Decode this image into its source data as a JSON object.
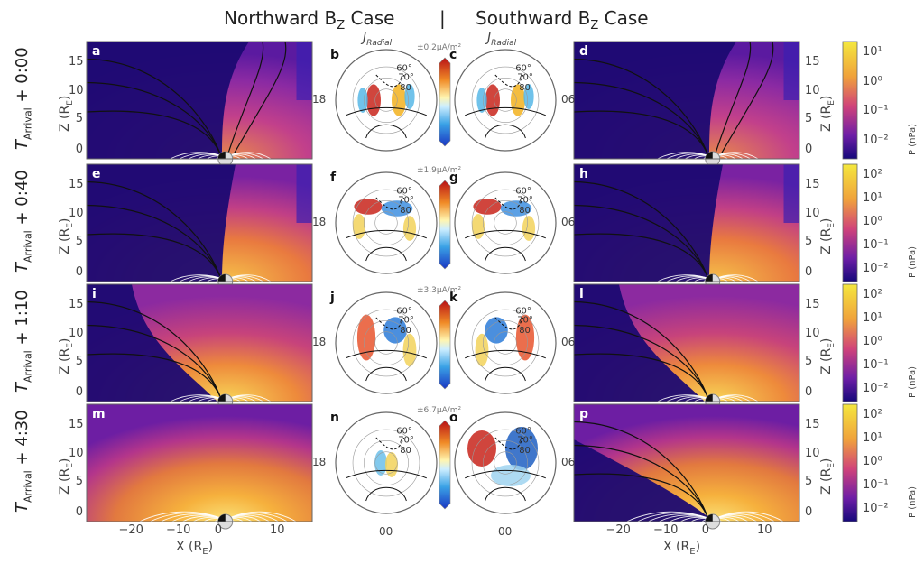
{
  "title_left": "Northward B",
  "title_left_sub": "Z",
  "title_left_tail": " Case",
  "separator": "|",
  "title_right": "Southward B",
  "title_right_sub": "Z",
  "title_right_tail": " Case",
  "jradial_label": "J",
  "jradial_sub": "Radial",
  "rows": [
    {
      "label": "T",
      "sub": "Arrival",
      "tail": " + 0:00",
      "scale": "±0.2μA/m²",
      "panels": [
        "a",
        "b",
        "c",
        "d"
      ],
      "cb_ticks": [
        "10¹",
        "10⁰",
        "10⁻¹",
        "10⁻²"
      ]
    },
    {
      "label": "T",
      "sub": "Arrival",
      "tail": " + 0:40",
      "scale": "±1.9μA/m²",
      "panels": [
        "e",
        "f",
        "g",
        "h"
      ],
      "cb_ticks": [
        "10²",
        "10¹",
        "10⁰",
        "10⁻¹",
        "10⁻²"
      ]
    },
    {
      "label": "T",
      "sub": "Arrival",
      "tail": " + 1:10",
      "scale": "±3.3μA/m²",
      "panels": [
        "i",
        "j",
        "k",
        "l"
      ],
      "cb_ticks": [
        "10²",
        "10¹",
        "10⁰",
        "10⁻¹",
        "10⁻²"
      ]
    },
    {
      "label": "T",
      "sub": "Arrival",
      "tail": " + 4:30",
      "scale": "±6.7μA/m²",
      "panels": [
        "m",
        "n",
        "o",
        "p"
      ],
      "cb_ticks": [
        "10²",
        "10¹",
        "10⁰",
        "10⁻¹",
        "10⁻²"
      ]
    }
  ],
  "z_ticks": [
    "15",
    "10",
    "5",
    "0"
  ],
  "x_ticks": [
    "−20",
    "−10",
    "0",
    "10"
  ],
  "z_axis_label": "Z (R",
  "axis_sub": "E",
  "axis_tail": ")",
  "x_axis_label": "X (R",
  "cb_label": "P (nPa)",
  "mlt_18": "18",
  "mlt_06": "06",
  "mlt_00": "00",
  "lat_labels": [
    "60°",
    "70°",
    "80"
  ],
  "colors": {
    "plasma_dark": "#1a0a6b",
    "plasma_mid": "#c23b8f",
    "plasma_hot": "#f7d13c",
    "current_pos": "#c8241b",
    "current_neg": "#1f6bd0"
  }
}
